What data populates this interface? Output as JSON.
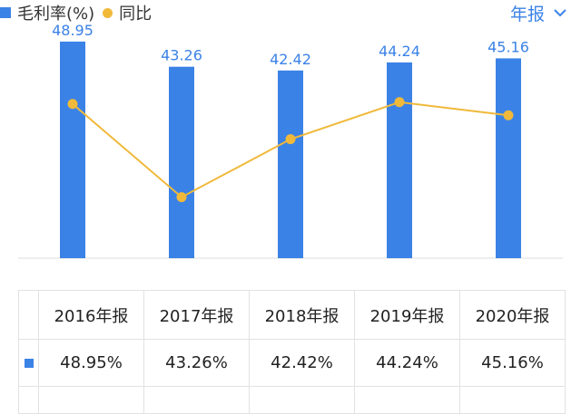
{
  "legend": {
    "bar_label": "毛利率(%)",
    "line_label": "同比"
  },
  "period_selector": {
    "label": "年报"
  },
  "colors": {
    "bar": "#3b82e6",
    "line": "#f0b93a",
    "value_label": "#3b82e6",
    "negative": "#e04b4b"
  },
  "chart_data": {
    "type": "bar",
    "categories": [
      "2016年报",
      "2017年报",
      "2018年报",
      "2019年报",
      "2020年报"
    ],
    "series": [
      {
        "name": "毛利率(%)",
        "type": "bar",
        "values": [
          48.95,
          43.26,
          42.42,
          44.24,
          45.16
        ]
      },
      {
        "name": "同比",
        "type": "line",
        "values": [
          4.0,
          -11.6,
          -1.9,
          4.3,
          2.1
        ]
      }
    ],
    "ylim": [
      0,
      52
    ],
    "line_ylim": [
      -15,
      7
    ]
  },
  "table": {
    "headers": [
      "2016年报",
      "2017年报",
      "2018年报",
      "2019年报",
      "2020年报"
    ],
    "values": [
      "48.95%",
      "43.26%",
      "42.42%",
      "44.24%",
      "45.16%"
    ]
  }
}
